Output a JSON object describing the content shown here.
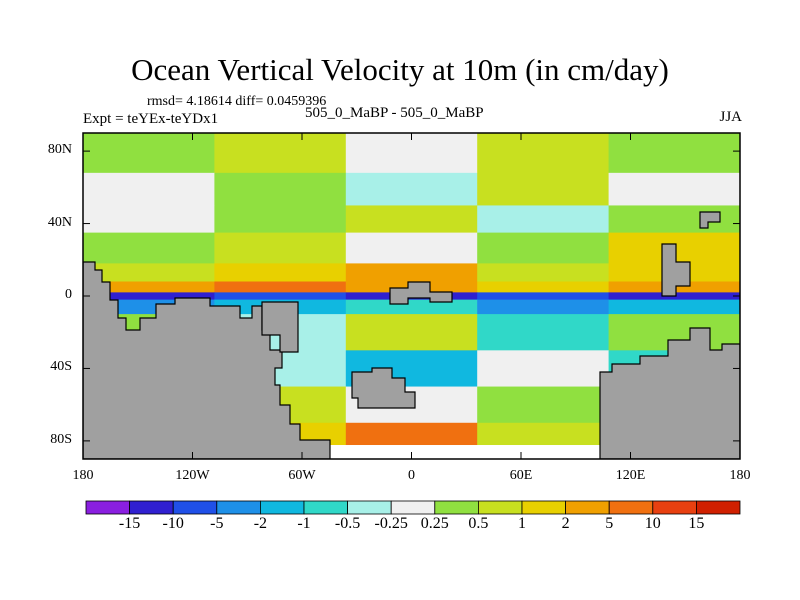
{
  "header": {
    "title": "Ocean Vertical Velocity at 10m (in cm/day)",
    "stats": "rmsd= 4.18614 diff= 0.0459396",
    "expt": "Expt = teYEx-teYDx1",
    "subtitle": "505_0_MaBP - 505_0_MaBP",
    "season": "JJA"
  },
  "chart_data": {
    "type": "heatmap",
    "title": "Ocean Vertical Velocity at 10m (in cm/day)",
    "xlabel": "",
    "ylabel": "",
    "xlim": [
      -180,
      180
    ],
    "ylim": [
      -90,
      90
    ],
    "x_ticks": [
      {
        "value": -180,
        "label": "180"
      },
      {
        "value": -120,
        "label": "120W"
      },
      {
        "value": -60,
        "label": "60W"
      },
      {
        "value": 0,
        "label": "0"
      },
      {
        "value": 60,
        "label": "60E"
      },
      {
        "value": 120,
        "label": "120E"
      },
      {
        "value": 180,
        "label": "180"
      }
    ],
    "y_ticks": [
      {
        "value": 80,
        "label": "80N"
      },
      {
        "value": 40,
        "label": "40N"
      },
      {
        "value": 0,
        "label": "0"
      },
      {
        "value": -40,
        "label": "40S"
      },
      {
        "value": -80,
        "label": "80S"
      }
    ],
    "colorbar": {
      "labels": [
        "-15",
        "-10",
        "-5",
        "-2",
        "-1",
        "-0.5",
        "-0.25",
        "0.25",
        "0.5",
        "1",
        "2",
        "5",
        "10",
        "15"
      ],
      "colors": [
        "#8a1fe0",
        "#3020d0",
        "#2050e8",
        "#1e90e8",
        "#10b8e0",
        "#30d8c8",
        "#a8f0e8",
        "#f0f0f0",
        "#90e040",
        "#c8e020",
        "#e8d000",
        "#f0a000",
        "#f07010",
        "#e84010",
        "#d02000"
      ]
    },
    "land_color": "#a0a0a0",
    "ocean_bands": [
      {
        "lat": [
          90,
          68
        ],
        "levels": [
          8,
          9,
          7,
          9,
          8
        ]
      },
      {
        "lat": [
          68,
          50
        ],
        "levels": [
          7,
          8,
          6,
          9,
          7
        ]
      },
      {
        "lat": [
          50,
          35
        ],
        "levels": [
          7,
          8,
          9,
          6,
          8
        ]
      },
      {
        "lat": [
          35,
          18
        ],
        "levels": [
          8,
          9,
          7,
          8,
          10
        ]
      },
      {
        "lat": [
          18,
          8
        ],
        "levels": [
          9,
          10,
          11,
          9,
          10
        ]
      },
      {
        "lat": [
          8,
          2
        ],
        "levels": [
          11,
          12,
          11,
          10,
          11
        ]
      },
      {
        "lat": [
          2,
          -2
        ],
        "levels": [
          1,
          2,
          1,
          2,
          1
        ]
      },
      {
        "lat": [
          -2,
          -10
        ],
        "levels": [
          3,
          4,
          5,
          3,
          4
        ]
      },
      {
        "lat": [
          -10,
          -30
        ],
        "levels": [
          8,
          6,
          9,
          5,
          8
        ]
      },
      {
        "lat": [
          -30,
          -50
        ],
        "levels": [
          5,
          6,
          4,
          7,
          5
        ]
      },
      {
        "lat": [
          -50,
          -70
        ],
        "levels": [
          8,
          9,
          7,
          8,
          9
        ]
      },
      {
        "lat": [
          -70,
          -82
        ],
        "levels": [
          11,
          10,
          12,
          9,
          10
        ]
      }
    ]
  }
}
